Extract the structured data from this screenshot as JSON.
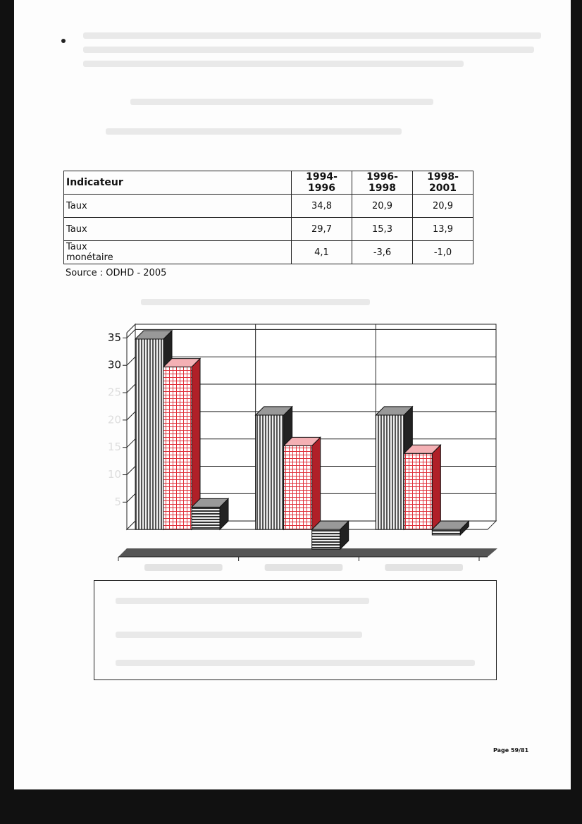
{
  "table": {
    "header": [
      "Indicateur",
      "1994-1996",
      "1996-1998",
      "1998-2001"
    ],
    "rows": [
      [
        "Taux",
        "34,8",
        "20,9",
        "20,9"
      ],
      [
        "Taux",
        "29,7",
        "15,3",
        "13,9"
      ],
      [
        "Taux\nmonétaire",
        "4,1",
        "-3,6",
        "-1,0"
      ]
    ]
  },
  "source": "Source : ODHD - 2005",
  "chart_data": {
    "type": "bar3d",
    "categories": [
      null,
      null,
      null
    ],
    "series": [
      {
        "color": "#666666",
        "values": [
          34.8,
          20.9,
          20.9
        ]
      },
      {
        "color": "#e0303a",
        "values": [
          29.7,
          15.3,
          13.9
        ]
      },
      {
        "color": "#333333",
        "values": [
          4.1,
          -3.6,
          -1.0
        ]
      }
    ],
    "ylim": [
      -5,
      37.5
    ],
    "yticks": [
      5,
      10,
      15,
      20,
      25,
      30,
      35
    ],
    "grid": true
  },
  "footer": {
    "page": "Page 59/81"
  }
}
